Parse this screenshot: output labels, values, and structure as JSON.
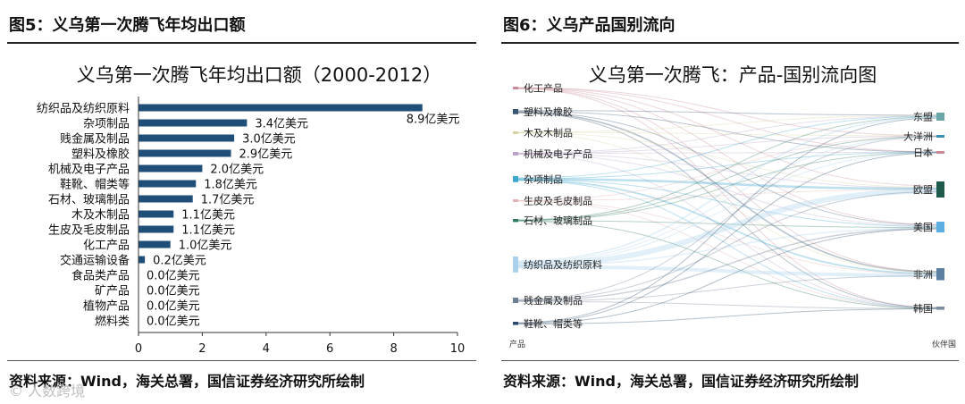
{
  "figure5": {
    "caption": "图5：义乌第一次腾飞年均出口额",
    "source": "资料来源：Wind，海关总署，国信证券经济研究所绘制",
    "chart_data": {
      "type": "bar",
      "orientation": "horizontal",
      "title": "义乌第一次腾飞年均出口额（2000-2012）",
      "categories": [
        "纺织品及纺织原料",
        "杂项制品",
        "贱金属及制品",
        "塑料及橡胶",
        "机械及电子产品",
        "鞋靴、帽类等",
        "石材、玻璃制品",
        "木及木制品",
        "生皮及毛皮制品",
        "化工产品",
        "交通运输设备",
        "食品类产品",
        "矿产品",
        "植物产品",
        "燃料类"
      ],
      "values": [
        8.9,
        3.4,
        3.0,
        2.9,
        2.0,
        1.8,
        1.7,
        1.1,
        1.1,
        1.0,
        0.2,
        0.0,
        0.0,
        0.0,
        0.0
      ],
      "data_labels": [
        "8.9亿美元",
        "3.4亿美元",
        "3.0亿美元",
        "2.9亿美元",
        "2.0亿美元",
        "1.8亿美元",
        "1.7亿美元",
        "1.1亿美元",
        "1.1亿美元",
        "1.0亿美元",
        "0.2亿美元",
        "0.0亿美元",
        "0.0亿美元",
        "0.0亿美元",
        "0.0亿美元"
      ],
      "xlim": [
        0,
        10
      ],
      "xticks": [
        "0",
        "2",
        "4",
        "6",
        "8",
        "10"
      ],
      "bar_color": "#1f4e79"
    }
  },
  "figure6": {
    "caption": "图6：义乌产品国别流向",
    "source": "资料来源：Wind，海关总署，国信证券经济研究所绘制",
    "chart_data": {
      "type": "sankey",
      "title": "义乌第一次腾飞：产品-国别流向图",
      "source_axis_label": "产品",
      "target_axis_label": "伙伴国",
      "sources": [
        {
          "name": "化工产品",
          "color": "#c98a96",
          "weight": 1.0
        },
        {
          "name": "塑料及橡胶",
          "color": "#3a5573",
          "weight": 2.9
        },
        {
          "name": "木及木制品",
          "color": "#d8d3a0",
          "weight": 1.1
        },
        {
          "name": "机械及电子产品",
          "color": "#b9a3c9",
          "weight": 2.0
        },
        {
          "name": "杂项制品",
          "color": "#3ea6cf",
          "weight": 3.4
        },
        {
          "name": "生皮及毛皮制品",
          "color": "#e0b3b3",
          "weight": 1.1
        },
        {
          "name": "石材、玻璃制品",
          "color": "#2e7a5e",
          "weight": 1.7
        },
        {
          "name": "纺织品及纺织原料",
          "color": "#a9d2ea",
          "weight": 8.9
        },
        {
          "name": "贱金属及制品",
          "color": "#6d7f96",
          "weight": 3.0
        },
        {
          "name": "鞋靴、帽类等",
          "color": "#2c4a6b",
          "weight": 1.8
        }
      ],
      "targets": [
        {
          "name": "东盟",
          "color": "#6aa6a8",
          "weight": 3.0
        },
        {
          "name": "大洋洲",
          "color": "#3a8fb7",
          "weight": 0.8
        },
        {
          "name": "日本",
          "color": "#c98a96",
          "weight": 0.8
        },
        {
          "name": "欧盟",
          "color": "#1e5a4c",
          "weight": 6.0
        },
        {
          "name": "美国",
          "color": "#5aaee0",
          "weight": 4.0
        },
        {
          "name": "非洲",
          "color": "#5a7fa0",
          "weight": 4.5
        },
        {
          "name": "韩国",
          "color": "#7d8da0",
          "weight": 1.2
        }
      ]
    }
  },
  "watermark": "© 人数跨境"
}
